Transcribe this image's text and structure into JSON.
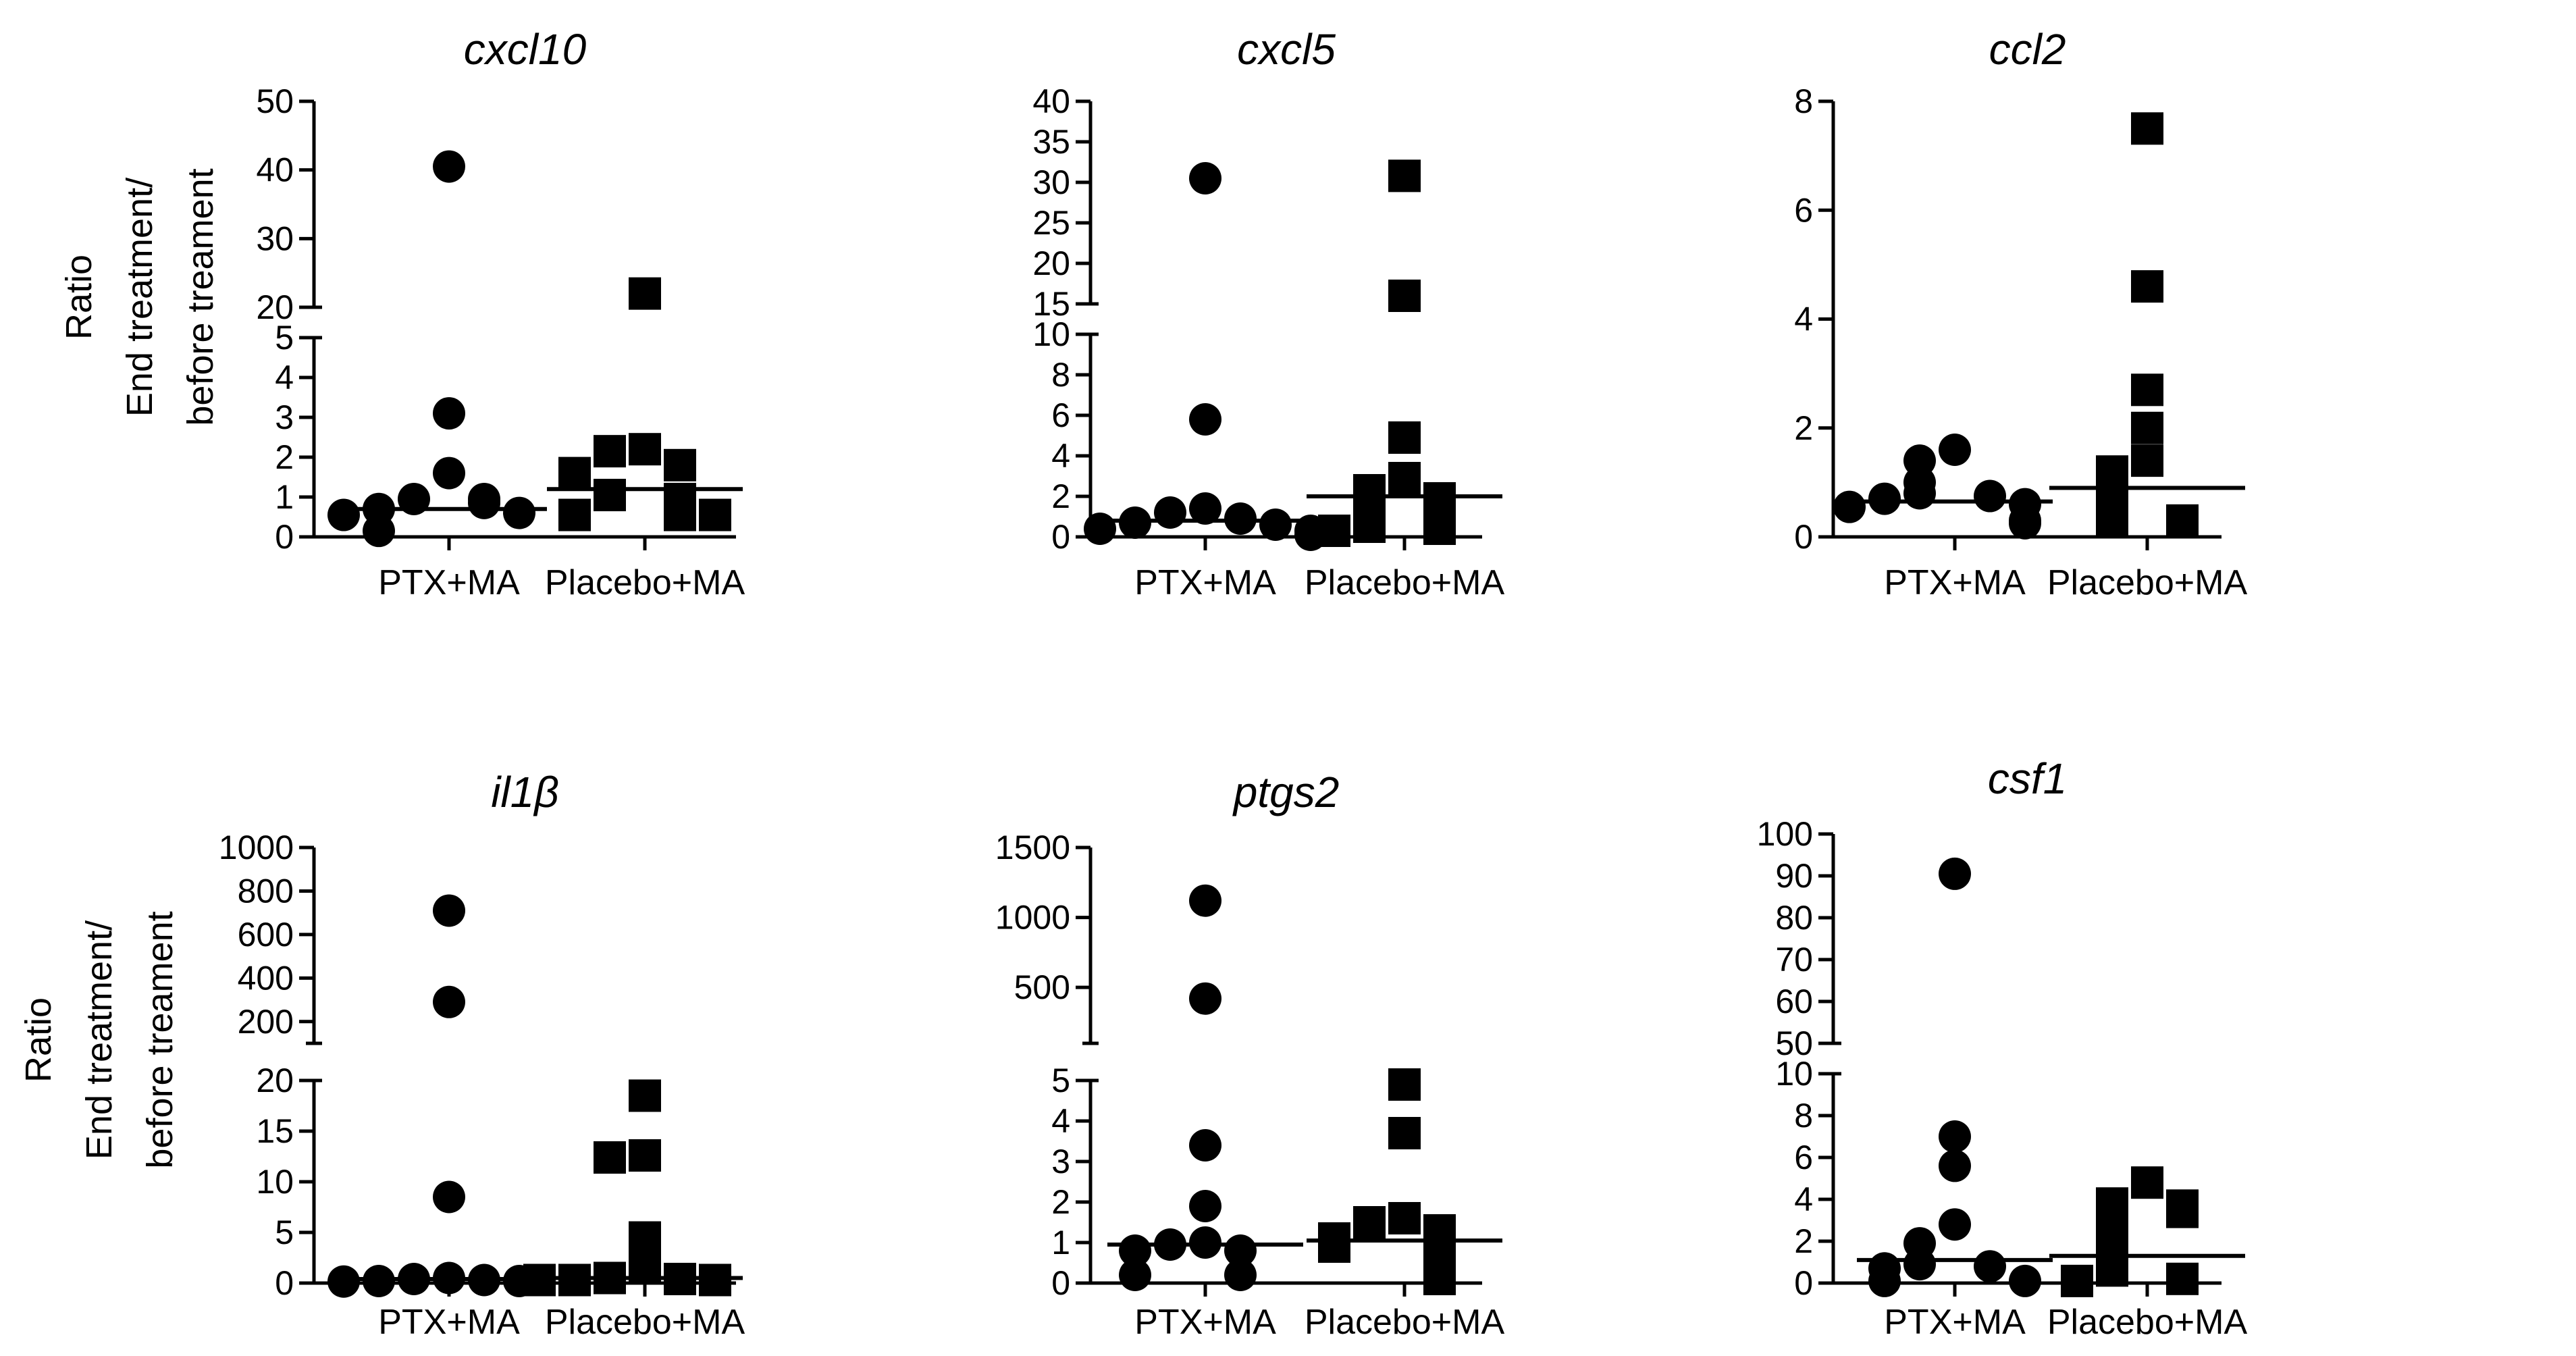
{
  "figure": {
    "y_label_lines": [
      "Ratio",
      "End treatment/",
      "before treament"
    ],
    "background": "#ffffff",
    "ink": "#000000"
  },
  "chart_data": [
    {
      "type": "scatter",
      "title": "cxcl10",
      "categories": [
        "PTX+MA",
        "Placebo+MA"
      ],
      "broken_axis": true,
      "lower_axis": {
        "ylim": [
          0,
          5
        ],
        "ticks": [
          0,
          1,
          2,
          3,
          4,
          5
        ]
      },
      "upper_axis": {
        "ylim": [
          20,
          50
        ],
        "ticks": [
          20,
          30,
          40,
          50
        ]
      },
      "series": [
        {
          "marker": "circle",
          "values": [
            40.5,
            3.1,
            1.6,
            0.95,
            0.95,
            0.85,
            0.7,
            0.6,
            0.55,
            0.15
          ],
          "median": 0.7
        },
        {
          "marker": "square",
          "values": [
            22,
            2.2,
            2.15,
            1.8,
            1.6,
            1.05,
            0.95,
            0.55,
            0.55,
            0.55
          ],
          "median": 1.2
        }
      ]
    },
    {
      "type": "scatter",
      "title": "cxcl5",
      "categories": [
        "PTX+MA",
        "Placebo+MA"
      ],
      "broken_axis": true,
      "lower_axis": {
        "ylim": [
          0,
          10
        ],
        "ticks": [
          0,
          2,
          4,
          6,
          8,
          10
        ]
      },
      "upper_axis": {
        "ylim": [
          15,
          40
        ],
        "ticks": [
          15,
          20,
          25,
          30,
          35,
          40
        ]
      },
      "series": [
        {
          "marker": "circle",
          "values": [
            30.5,
            5.8,
            1.4,
            1.2,
            0.9,
            0.7,
            0.6,
            0.4,
            0.3,
            0.1
          ],
          "median": 0.8
        },
        {
          "marker": "square",
          "values": [
            30.8,
            16,
            4.9,
            2.9,
            2.3,
            1.9,
            0.8,
            0.5,
            0.4,
            0.3
          ],
          "median": 2.0
        }
      ]
    },
    {
      "type": "scatter",
      "title": "ccl2",
      "categories": [
        "PTX+MA",
        "Placebo+MA"
      ],
      "broken_axis": false,
      "lower_axis": {
        "ylim": [
          0,
          8
        ],
        "ticks": [
          0,
          2,
          4,
          6,
          8
        ]
      },
      "series": [
        {
          "marker": "circle",
          "values": [
            1.6,
            1.4,
            1.0,
            0.8,
            0.75,
            0.7,
            0.6,
            0.55,
            0.3,
            0.25
          ],
          "median": 0.65
        },
        {
          "marker": "square",
          "values": [
            7.5,
            4.6,
            2.7,
            2.0,
            1.4,
            1.2,
            0.9,
            0.45,
            0.3,
            0.3
          ],
          "median": 0.9
        }
      ]
    },
    {
      "type": "scatter",
      "title": "il1β",
      "categories": [
        "PTX+MA",
        "Placebo+MA"
      ],
      "broken_axis": true,
      "lower_axis": {
        "ylim": [
          0,
          20
        ],
        "ticks": [
          0,
          5,
          10,
          15,
          20
        ]
      },
      "upper_axis": {
        "ylim": [
          100,
          1000
        ],
        "ticks": [
          200,
          400,
          600,
          800,
          1000
        ]
      },
      "series": [
        {
          "marker": "circle",
          "values": [
            710,
            290,
            8.5,
            0.5,
            0.4,
            0.3,
            0.2,
            0.2,
            0.15
          ],
          "median": 0.4
        },
        {
          "marker": "square",
          "values": [
            18.5,
            12.6,
            12.4,
            4.5,
            1.5,
            0.5,
            0.4,
            0.3,
            0.3,
            0.3
          ],
          "median": 0.5
        }
      ]
    },
    {
      "type": "scatter",
      "title": "ptgs2",
      "categories": [
        "PTX+MA",
        "Placebo+MA"
      ],
      "broken_axis": true,
      "lower_axis": {
        "ylim": [
          0,
          5
        ],
        "ticks": [
          0,
          1,
          2,
          3,
          4,
          5
        ]
      },
      "upper_axis": {
        "ylim": [
          100,
          1500
        ],
        "ticks": [
          500,
          1000,
          1500
        ]
      },
      "series": [
        {
          "marker": "circle",
          "values": [
            1120,
            420,
            3.4,
            1.9,
            1.0,
            0.95,
            0.8,
            0.8,
            0.2,
            0.2
          ],
          "median": 0.95
        },
        {
          "marker": "square",
          "values": [
            4.9,
            3.7,
            1.6,
            1.5,
            1.3,
            1.1,
            0.9,
            0.55,
            0.45,
            0.1
          ],
          "median": 1.05
        }
      ]
    },
    {
      "type": "scatter",
      "title": "csf1",
      "categories": [
        "PTX+MA",
        "Placebo+MA"
      ],
      "broken_axis": true,
      "lower_axis": {
        "ylim": [
          0,
          10
        ],
        "ticks": [
          0,
          2,
          4,
          6,
          8,
          10
        ]
      },
      "upper_axis": {
        "ylim": [
          50,
          100
        ],
        "ticks": [
          50,
          60,
          70,
          80,
          90,
          100
        ]
      },
      "series": [
        {
          "marker": "circle",
          "values": [
            90.5,
            7.0,
            5.6,
            2.8,
            1.9,
            0.9,
            0.8,
            0.7,
            0.1,
            0.1
          ],
          "median": 1.1
        },
        {
          "marker": "square",
          "values": [
            4.8,
            3.8,
            3.7,
            3.4,
            2.3,
            1.9,
            0.8,
            0.6,
            0.2,
            0.1
          ],
          "median": 1.3
        }
      ]
    }
  ]
}
